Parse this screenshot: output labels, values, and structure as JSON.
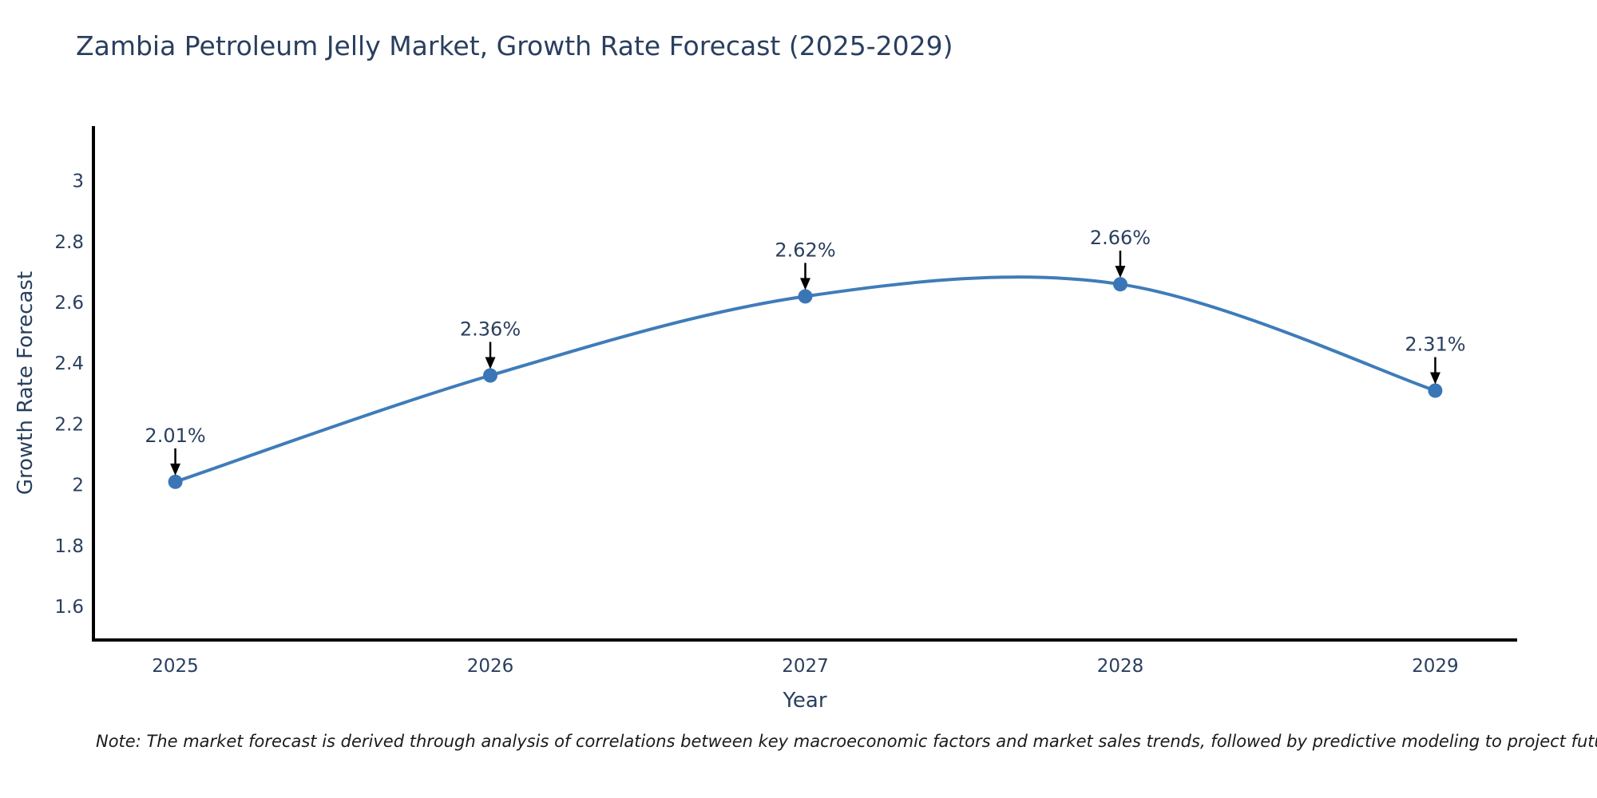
{
  "note": "Note: The market forecast is derived through analysis of correlations between key macroeconomic factors and market sales trends, followed by predictive modeling to project future sales",
  "colors": {
    "title": "#2a3f5f",
    "tick": "#2a3f5f",
    "axis_line": "#000000",
    "note": "#1a1a1a",
    "background": "#ffffff"
  },
  "chart_data": {
    "type": "line",
    "title": "Zambia Petroleum Jelly Market, Growth Rate Forecast (2025-2029)",
    "xlabel": "Year",
    "ylabel": "Growth Rate Forecast",
    "x": [
      2025,
      2026,
      2027,
      2028,
      2029
    ],
    "values": [
      2.01,
      2.36,
      2.62,
      2.66,
      2.31
    ],
    "point_labels": [
      "2.01%",
      "2.36%",
      "2.62%",
      "2.66%",
      "2.31%"
    ],
    "xticks": [
      "2025",
      "2026",
      "2027",
      "2028",
      "2029"
    ],
    "yticks": [
      1.6,
      1.8,
      2,
      2.2,
      2.4,
      2.6,
      2.8,
      3
    ],
    "ytick_labels": [
      "1.6",
      "1.8",
      "2",
      "2.2",
      "2.4",
      "2.6",
      "2.8",
      "3"
    ],
    "xlim": [
      2024.74,
      2029.26
    ],
    "ylim": [
      1.49,
      3.18
    ],
    "grid": false,
    "legend": "none",
    "curve": "spline",
    "line_color": "#3f7cb9",
    "marker_color": "#3a76b5",
    "annotation_arrow_color": "#000000"
  }
}
